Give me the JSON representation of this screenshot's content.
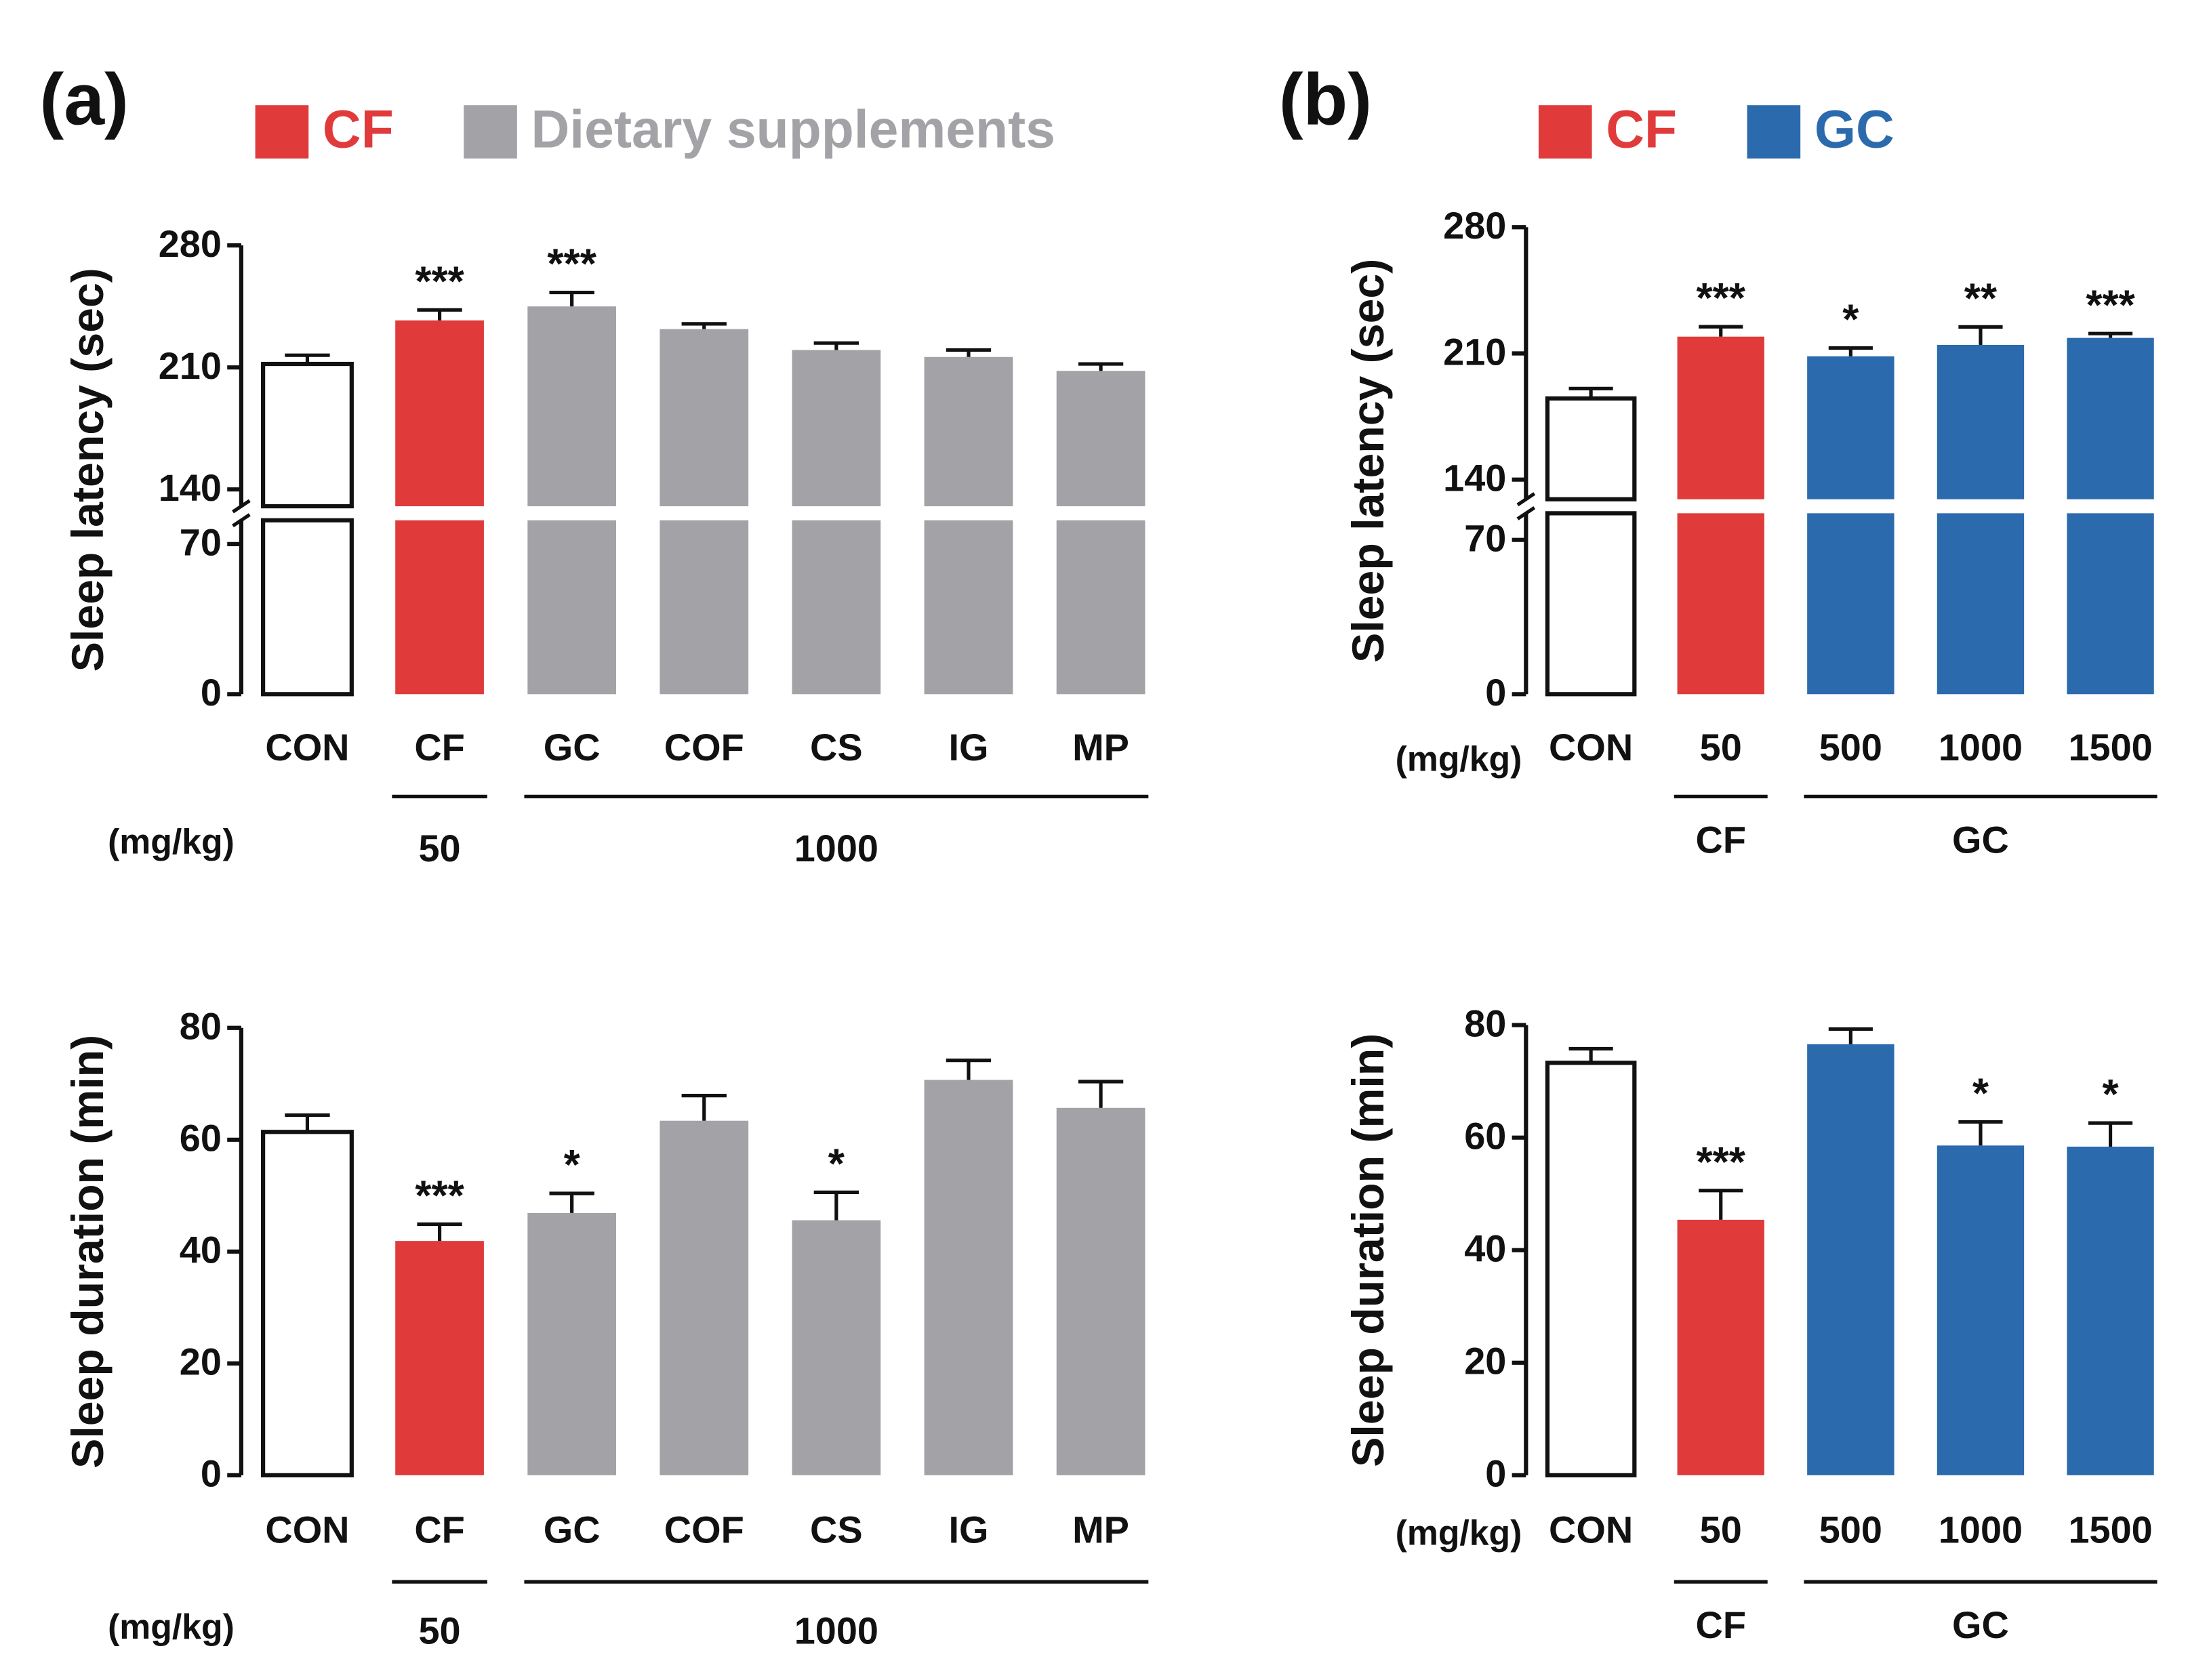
{
  "chart_data": [
    {
      "type": "bar",
      "title": "(a)",
      "legend": [
        {
          "name": "CF",
          "color": "#e03a3a"
        },
        {
          "name": "Dietary supplements",
          "color": "#a2a2a7"
        }
      ],
      "ylabel": "Sleep latency (sec)",
      "categories": [
        "CON",
        "CF",
        "GC",
        "COF",
        "CS",
        "IG",
        "MP"
      ],
      "values": [
        212,
        237,
        245,
        232,
        220,
        216,
        208
      ],
      "errors": [
        5,
        6,
        8,
        3,
        4,
        4,
        4
      ],
      "significance": [
        null,
        "***",
        "***",
        null,
        null,
        null,
        null
      ],
      "colors": [
        "#ffffff",
        "#e03a3a",
        "#a2a2a7",
        "#a2a2a7",
        "#a2a2a7",
        "#a2a2a7",
        "#a2a2a7"
      ],
      "ylim": [
        0,
        280
      ],
      "yticks": [
        0,
        70,
        140,
        210,
        280
      ],
      "ybreak": [
        70,
        140
      ],
      "unit_label": "(mg/kg)",
      "groups": [
        {
          "label": "50",
          "span": [
            1,
            1
          ]
        },
        {
          "label": "1000",
          "span": [
            2,
            6
          ]
        }
      ]
    },
    {
      "type": "bar",
      "ylabel": "Sleep duration (min)",
      "categories": [
        "CON",
        "CF",
        "GC",
        "COF",
        "CS",
        "IG",
        "MP"
      ],
      "values": [
        61.4,
        41.9,
        46.9,
        63.4,
        45.6,
        70.7,
        65.7
      ],
      "errors": [
        3,
        3,
        3.5,
        4.5,
        5,
        3.5,
        4.7
      ],
      "significance": [
        null,
        "***",
        "*",
        null,
        "*",
        null,
        null
      ],
      "colors": [
        "#ffffff",
        "#e03a3a",
        "#a2a2a7",
        "#a2a2a7",
        "#a2a2a7",
        "#a2a2a7",
        "#a2a2a7"
      ],
      "ylim": [
        0,
        80
      ],
      "yticks": [
        0,
        20,
        40,
        60,
        80
      ],
      "unit_label": "(mg/kg)",
      "groups": [
        {
          "label": "50",
          "span": [
            1,
            1
          ]
        },
        {
          "label": "1000",
          "span": [
            2,
            6
          ]
        }
      ]
    },
    {
      "type": "bar",
      "title": "(b)",
      "legend": [
        {
          "name": "CF",
          "color": "#e03a3a"
        },
        {
          "name": "GC",
          "color": "#2b6aad"
        }
      ],
      "ylabel": "Sleep latency (sec)",
      "categories": [
        "CON",
        "50",
        "500",
        "1000",
        "1500"
      ],
      "values": [
        185,
        219.3,
        208.4,
        214.7,
        218.6
      ],
      "errors": [
        5.5,
        5.5,
        4.6,
        10,
        2.4
      ],
      "significance": [
        null,
        "***",
        "*",
        "**",
        "***"
      ],
      "colors": [
        "#ffffff",
        "#e03a3a",
        "#2b6aad",
        "#2b6aad",
        "#2b6aad"
      ],
      "ylim": [
        0,
        280
      ],
      "yticks": [
        0,
        70,
        140,
        210,
        280
      ],
      "ybreak": [
        70,
        140
      ],
      "unit_label": "(mg/kg)",
      "groups": [
        {
          "label": "CF",
          "span": [
            1,
            1
          ]
        },
        {
          "label": "GC",
          "span": [
            2,
            4
          ]
        }
      ]
    },
    {
      "type": "bar",
      "ylabel": "Sleep duration (min)",
      "categories": [
        "CON",
        "50",
        "500",
        "1000",
        "1500"
      ],
      "values": [
        73.3,
        45.4,
        76.6,
        58.6,
        58.4
      ],
      "errors": [
        2.5,
        5.2,
        2.7,
        4.2,
        4.2
      ],
      "significance": [
        null,
        "***",
        null,
        "*",
        "*"
      ],
      "colors": [
        "#ffffff",
        "#e03a3a",
        "#2b6aad",
        "#2b6aad",
        "#2b6aad"
      ],
      "ylim": [
        0,
        80
      ],
      "yticks": [
        0,
        20,
        40,
        60,
        80
      ],
      "unit_label": "(mg/kg)",
      "groups": [
        {
          "label": "CF",
          "span": [
            1,
            1
          ]
        },
        {
          "label": "GC",
          "span": [
            2,
            4
          ]
        }
      ]
    }
  ]
}
